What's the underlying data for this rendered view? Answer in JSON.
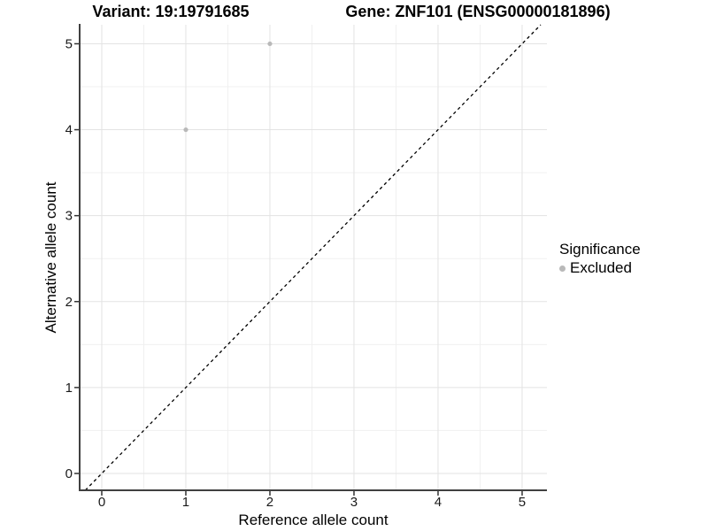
{
  "header": {
    "variant_title": "Variant: 19:19791685",
    "gene_title": "Gene: ZNF101 (ENSG00000181896)"
  },
  "chart_data": {
    "type": "scatter",
    "title": "Variant: 19:19791685 | Gene: ZNF101 (ENSG00000181896)",
    "xlabel": "Reference allele count",
    "ylabel": "Alternative allele count",
    "xlim": [
      -0.263,
      5.295
    ],
    "ylim": [
      -0.196,
      5.221
    ],
    "x_ticks": [
      0,
      1,
      2,
      3,
      4,
      5
    ],
    "y_ticks": [
      0,
      1,
      2,
      3,
      4,
      5
    ],
    "grid": {
      "major": true,
      "minor": true
    },
    "identity_line": {
      "style": "dashed",
      "color": "#000000",
      "equation": "y = x"
    },
    "series": [
      {
        "name": "Excluded",
        "marker": "circle",
        "color": "#b9b9b9",
        "points": [
          [
            1,
            4
          ],
          [
            2,
            5
          ]
        ]
      }
    ],
    "legend": {
      "title": "Significance",
      "position": "right",
      "entries": [
        {
          "label": "Excluded",
          "color": "#b9b9b9",
          "marker": "circle"
        }
      ]
    }
  }
}
